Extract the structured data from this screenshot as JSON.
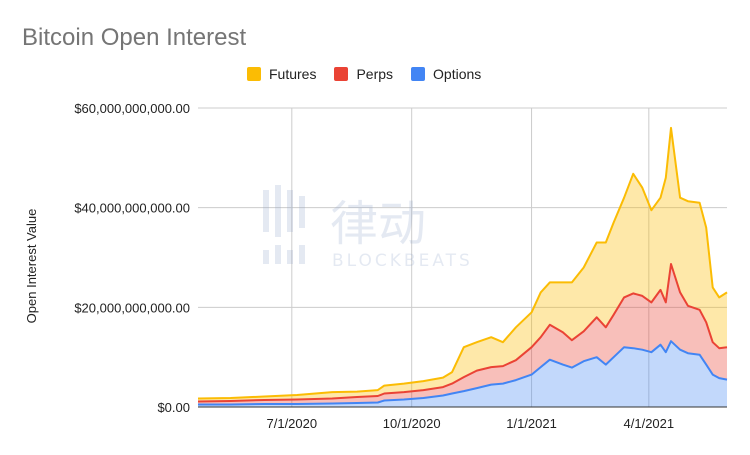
{
  "chart_data": {
    "type": "area",
    "title": "Bitcoin Open Interest",
    "ylabel": "Open Interest Value",
    "xlabel": "",
    "ylim": [
      0,
      60000000000
    ],
    "y_ticks": [
      {
        "value": 0,
        "label": "$0.00"
      },
      {
        "value": 20000000000,
        "label": "$20,000,000,000.00"
      },
      {
        "value": 40000000000,
        "label": "$40,000,000,000.00"
      },
      {
        "value": 60000000000,
        "label": "$60,000,000,000.00"
      }
    ],
    "x_ticks": [
      "7/1/2020",
      "10/1/2020",
      "1/1/2021",
      "4/1/2021"
    ],
    "legend_position": "top",
    "stacked": true,
    "x": [
      "2020-04-20",
      "2020-05-15",
      "2020-06-10",
      "2020-07-05",
      "2020-08-01",
      "2020-08-20",
      "2020-09-05",
      "2020-09-10",
      "2020-09-25",
      "2020-10-10",
      "2020-10-25",
      "2020-11-01",
      "2020-11-10",
      "2020-11-20",
      "2020-12-01",
      "2020-12-10",
      "2020-12-20",
      "2021-01-01",
      "2021-01-08",
      "2021-01-15",
      "2021-01-25",
      "2021-02-01",
      "2021-02-10",
      "2021-02-20",
      "2021-02-27",
      "2021-03-05",
      "2021-03-13",
      "2021-03-20",
      "2021-03-27",
      "2021-04-03",
      "2021-04-10",
      "2021-04-14",
      "2021-04-18",
      "2021-04-25",
      "2021-05-01",
      "2021-05-10",
      "2021-05-15",
      "2021-05-20",
      "2021-05-25",
      "2021-05-31"
    ],
    "series": [
      {
        "name": "Options",
        "color": "#4285f4",
        "values": [
          0.5,
          0.5,
          0.6,
          0.6,
          0.7,
          0.8,
          0.9,
          1.3,
          1.5,
          1.8,
          2.3,
          2.7,
          3.2,
          3.8,
          4.5,
          4.7,
          5.4,
          6.5,
          8.0,
          9.5,
          8.5,
          7.9,
          9.2,
          10.0,
          8.5,
          10.0,
          12.0,
          11.8,
          11.5,
          11.0,
          12.5,
          11.0,
          13.2,
          11.5,
          10.8,
          10.5,
          8.5,
          6.5,
          5.8,
          5.5
        ]
      },
      {
        "name": "Perps",
        "color": "#ea4335",
        "values": [
          0.6,
          0.7,
          0.8,
          0.9,
          1.0,
          1.2,
          1.3,
          1.4,
          1.5,
          1.6,
          1.7,
          2.0,
          2.8,
          3.5,
          3.5,
          3.5,
          4.0,
          5.5,
          6.0,
          7.0,
          6.5,
          5.5,
          6.0,
          8.0,
          7.5,
          8.5,
          10.0,
          11.0,
          10.8,
          10.0,
          11.0,
          10.0,
          15.5,
          11.5,
          9.5,
          9.0,
          8.5,
          6.5,
          6.0,
          6.5
        ]
      },
      {
        "name": "Futures",
        "color": "#fbbc04",
        "values": [
          0.6,
          0.6,
          0.7,
          0.9,
          1.3,
          1.1,
          1.2,
          1.6,
          1.7,
          1.8,
          1.9,
          2.3,
          6.0,
          5.7,
          6.0,
          4.8,
          6.6,
          7.0,
          9.0,
          8.5,
          10.0,
          11.6,
          12.8,
          15.0,
          17.0,
          18.5,
          20.0,
          24.0,
          21.7,
          18.5,
          18.5,
          25.0,
          27.3,
          19.0,
          21.0,
          21.5,
          19.0,
          11.0,
          10.2,
          11.0
        ]
      }
    ]
  },
  "watermark": {
    "cn_text": "律动",
    "en_text": "BLOCKBEATS"
  }
}
